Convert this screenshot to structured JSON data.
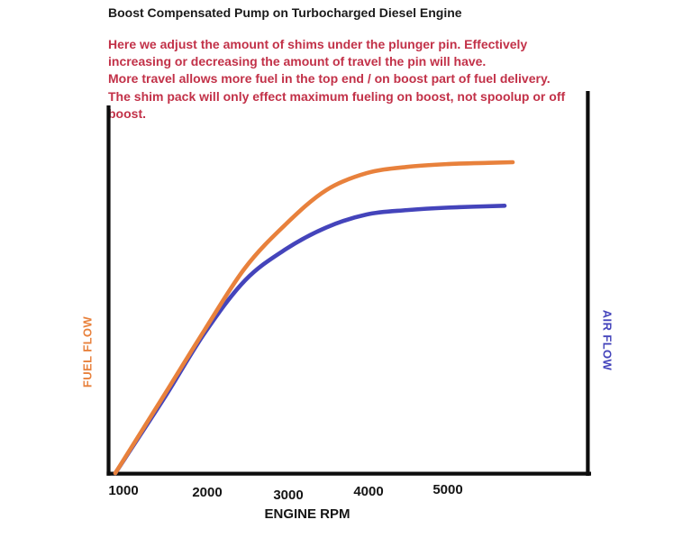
{
  "title": "Boost Compensated Pump on Turbocharged Diesel Engine",
  "annotation": {
    "color": "#c23148",
    "lines": [
      "Here we adjust the amount of shims under the plunger pin. Effectively",
      "increasing or decreasing the amount of travel the pin will have.",
      "More travel allows more fuel in the top end / on boost part of fuel delivery.",
      "The shim pack will only effect maximum fueling on boost, not spoolup or off",
      "boost."
    ]
  },
  "chart_data": {
    "type": "line",
    "title": "Boost Compensated Pump on Turbocharged Diesel Engine",
    "xlabel": "ENGINE RPM",
    "left_axis_label": "FUEL FLOW",
    "right_axis_label": "AIR FLOW",
    "xticks": [
      1000,
      2000,
      3000,
      4000,
      5000
    ],
    "x_range_rpm": [
      900,
      5800
    ],
    "grid": false,
    "legend_position": "rotated-axis-labels",
    "axis_color": "#0d0d0d",
    "series": [
      {
        "name": "FUEL FLOW",
        "axis": "left",
        "color": "#e8813c",
        "x": [
          900,
          1500,
          2000,
          2500,
          3000,
          3500,
          4000,
          4500,
          5000,
          5500,
          5800
        ],
        "values": [
          0,
          25,
          46,
          66,
          80,
          91,
          96.5,
          98.5,
          99.4,
          99.8,
          100
        ]
      },
      {
        "name": "AIR FLOW",
        "axis": "right",
        "color": "#4444bb",
        "x": [
          900,
          1500,
          2000,
          2500,
          3000,
          3500,
          4000,
          4500,
          5000,
          5700
        ],
        "values": [
          0,
          24,
          45,
          62,
          72,
          79,
          83.2,
          84.6,
          85.4,
          86
        ]
      }
    ]
  }
}
